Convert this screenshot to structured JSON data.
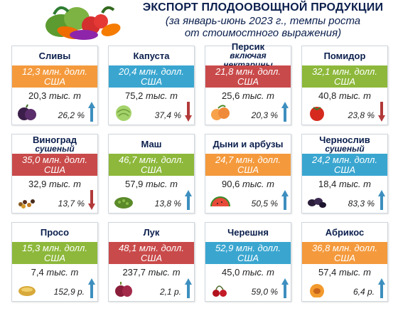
{
  "header": {
    "title": "ЭКСПОРТ ПЛОДООВОЩНОЙ ПРОДУКЦИИ",
    "subtitle_line1": "(за январь-июнь 2023 г., темпы роста",
    "subtitle_line2": "от стоимостного выражения)"
  },
  "colors": {
    "blue": "#3aa6d0",
    "orange": "#f49a3d",
    "red": "#c94a4a",
    "green": "#8db83b",
    "arrow_up": "#3d8fbf",
    "arrow_down": "#b33a3a"
  },
  "cards": [
    {
      "name": "Сливы",
      "sub": "",
      "value": "12,3 млн. долл. США",
      "volume": "20,3",
      "unit": "тыс. т",
      "change": "26,2 %",
      "trend": "up",
      "color": "orange",
      "icon": "plum-icon"
    },
    {
      "name": "Капуста",
      "sub": "",
      "value": "20,4 млн. долл. США",
      "volume": "75,2",
      "unit": "тыс. т",
      "change": "37,4 %",
      "trend": "down",
      "color": "blue",
      "icon": "cabbage-icon"
    },
    {
      "name": "Персик",
      "sub": "включая нектарины",
      "value": "21,8 млн. долл. США",
      "volume": "25,6",
      "unit": "тыс. т",
      "change": "20,3 %",
      "trend": "up",
      "color": "red",
      "icon": "peach-icon"
    },
    {
      "name": "Помидор",
      "sub": "",
      "value": "32,1 млн. долл. США",
      "volume": "40,8",
      "unit": "тыс. т",
      "change": "23,8 %",
      "trend": "down",
      "color": "green",
      "icon": "tomato-icon"
    },
    {
      "name": "Виноград",
      "sub": "сушеный",
      "value": "35,0 млн. долл. США",
      "volume": "32,9",
      "unit": "тыс. т",
      "change": "13,7 %",
      "trend": "down",
      "color": "red",
      "icon": "raisin-icon"
    },
    {
      "name": "Маш",
      "sub": "",
      "value": "46,7 млн. долл. США",
      "volume": "57,9",
      "unit": "тыс. т",
      "change": "13,8 %",
      "trend": "up",
      "color": "green",
      "icon": "mung-bean-icon"
    },
    {
      "name": "Дыни и арбузы",
      "sub": "",
      "value": "24,7 млн. долл. США",
      "volume": "90,6",
      "unit": "тыс. т",
      "change": "50,5 %",
      "trend": "up",
      "color": "orange",
      "icon": "melon-icon"
    },
    {
      "name": "Чернослив",
      "sub": "сушеный",
      "value": "24,2 млн. долл. США",
      "volume": "18,4",
      "unit": "тыс. т",
      "change": "83,3 %",
      "trend": "up",
      "color": "blue",
      "icon": "prune-icon"
    },
    {
      "name": "Просо",
      "sub": "",
      "value": "15,3 млн. долл. США",
      "volume": "7,4",
      "unit": "тыс. т",
      "change": "152,9 р.",
      "trend": "up",
      "color": "green",
      "icon": "millet-icon"
    },
    {
      "name": "Лук",
      "sub": "",
      "value": "48,1 млн. долл. США",
      "volume": "237,7",
      "unit": "тыс. т",
      "change": "2,1 р.",
      "trend": "up",
      "color": "red",
      "icon": "onion-icon"
    },
    {
      "name": "Черешня",
      "sub": "",
      "value": "52,9 млн. долл. США",
      "volume": "45,0",
      "unit": "тыс. т",
      "change": "59,0 %",
      "trend": "up",
      "color": "blue",
      "icon": "cherry-icon"
    },
    {
      "name": "Абрикос",
      "sub": "",
      "value": "36,8 млн. долл. США",
      "volume": "57,4",
      "unit": "тыс. т",
      "change": "6,4 р.",
      "trend": "up",
      "color": "orange",
      "icon": "apricot-icon"
    }
  ]
}
